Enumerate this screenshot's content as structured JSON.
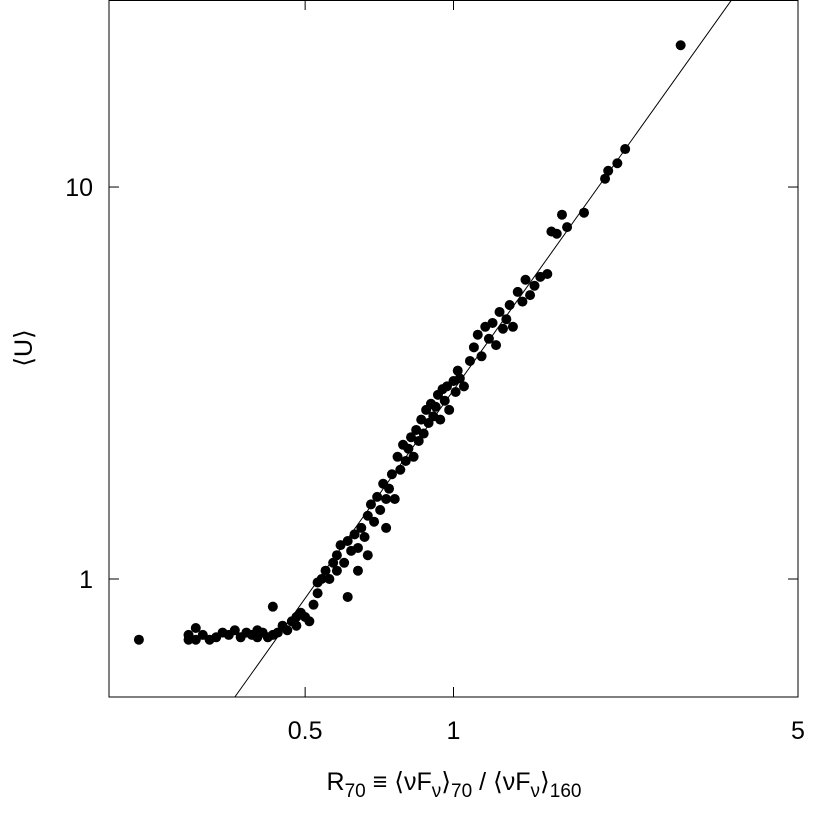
{
  "chart_data": {
    "type": "scatter",
    "ylabel": "⟨U⟩",
    "xlabel_parts": [
      "R",
      "70",
      " ≡ ⟨νF",
      "ν",
      "⟩",
      "70",
      " / ⟨νF",
      "ν",
      "⟩",
      "160"
    ],
    "log_x": true,
    "log_y": true,
    "xlim": [
      0.2,
      5
    ],
    "ylim": [
      0.5,
      30
    ],
    "xticks": [
      0.5,
      1,
      5
    ],
    "yticks": [
      1,
      10
    ],
    "color": "#000000",
    "x": [
      0.23,
      0.29,
      0.29,
      0.3,
      0.3,
      0.31,
      0.32,
      0.33,
      0.34,
      0.35,
      0.36,
      0.37,
      0.38,
      0.39,
      0.4,
      0.4,
      0.41,
      0.42,
      0.43,
      0.43,
      0.44,
      0.45,
      0.46,
      0.47,
      0.48,
      0.48,
      0.49,
      0.5,
      0.51,
      0.52,
      0.53,
      0.53,
      0.54,
      0.55,
      0.56,
      0.57,
      0.58,
      0.58,
      0.59,
      0.6,
      0.61,
      0.61,
      0.62,
      0.63,
      0.64,
      0.64,
      0.65,
      0.66,
      0.67,
      0.67,
      0.68,
      0.69,
      0.7,
      0.71,
      0.72,
      0.73,
      0.73,
      0.74,
      0.75,
      0.76,
      0.77,
      0.78,
      0.79,
      0.8,
      0.81,
      0.82,
      0.83,
      0.84,
      0.85,
      0.86,
      0.87,
      0.88,
      0.89,
      0.9,
      0.91,
      0.92,
      0.93,
      0.94,
      0.95,
      0.96,
      0.97,
      0.98,
      1.0,
      1.01,
      1.02,
      1.03,
      1.05,
      1.08,
      1.1,
      1.12,
      1.14,
      1.16,
      1.18,
      1.2,
      1.22,
      1.24,
      1.26,
      1.28,
      1.3,
      1.32,
      1.35,
      1.38,
      1.4,
      1.43,
      1.46,
      1.5,
      1.55,
      1.58,
      1.62,
      1.66,
      1.7,
      1.84,
      2.03,
      2.06,
      2.15,
      2.23,
      2.89
    ],
    "y": [
      0.7,
      0.72,
      0.7,
      0.75,
      0.7,
      0.72,
      0.7,
      0.71,
      0.73,
      0.72,
      0.74,
      0.71,
      0.73,
      0.72,
      0.74,
      0.71,
      0.73,
      0.71,
      0.72,
      0.85,
      0.73,
      0.76,
      0.74,
      0.78,
      0.8,
      0.76,
      0.82,
      0.8,
      0.78,
      0.86,
      0.92,
      0.98,
      1.0,
      1.05,
      1.0,
      1.1,
      1.05,
      1.15,
      1.22,
      1.1,
      0.9,
      1.25,
      1.18,
      1.3,
      1.2,
      1.05,
      1.35,
      1.28,
      1.45,
      1.15,
      1.55,
      1.4,
      1.62,
      1.5,
      1.75,
      1.6,
      1.35,
      1.7,
      1.85,
      1.6,
      2.05,
      1.9,
      2.2,
      2.0,
      2.15,
      2.3,
      2.05,
      2.4,
      2.25,
      2.55,
      2.35,
      2.7,
      2.5,
      2.8,
      2.6,
      2.75,
      2.95,
      2.55,
      3.05,
      2.85,
      3.1,
      2.7,
      3.2,
      3.0,
      3.4,
      3.25,
      3.1,
      3.6,
      3.9,
      4.2,
      3.7,
      4.4,
      4.1,
      4.5,
      3.95,
      4.8,
      4.35,
      4.6,
      5.0,
      4.4,
      5.4,
      5.1,
      5.8,
      5.3,
      5.6,
      5.9,
      6.0,
      7.7,
      7.6,
      8.5,
      7.9,
      8.6,
      10.5,
      11.0,
      11.5,
      12.5,
      23
    ],
    "fit_line": {
      "x": [
        0.36,
        3.7
      ],
      "y": [
        0.5,
        30.5
      ]
    }
  }
}
